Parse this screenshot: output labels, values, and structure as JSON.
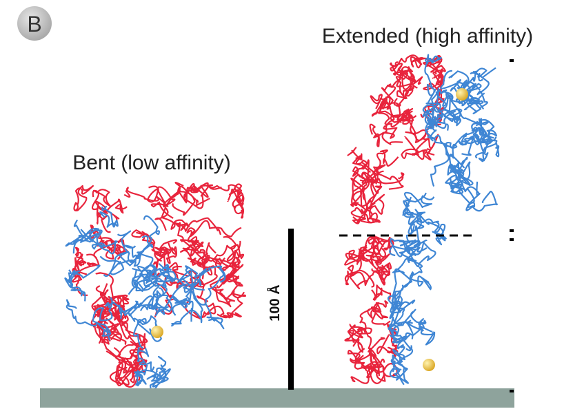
{
  "panel_label": "B",
  "labels": {
    "bent": "Bent (low affinity)",
    "extended": "Extended (high affinity)"
  },
  "scale_bar": {
    "label": "100 Å"
  }
}
